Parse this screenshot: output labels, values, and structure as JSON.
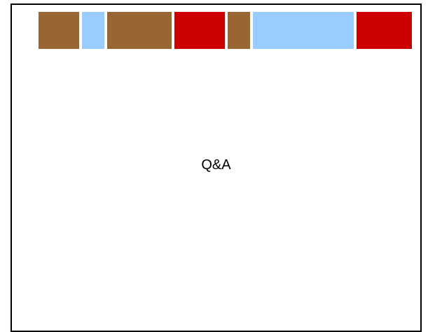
{
  "slide": {
    "title": "Q&A"
  },
  "decor": {
    "stripe_colors": [
      "#996633",
      "#99ccff",
      "#996633",
      "#cc0000",
      "#996633",
      "#99ccff",
      "#cc0000"
    ]
  }
}
